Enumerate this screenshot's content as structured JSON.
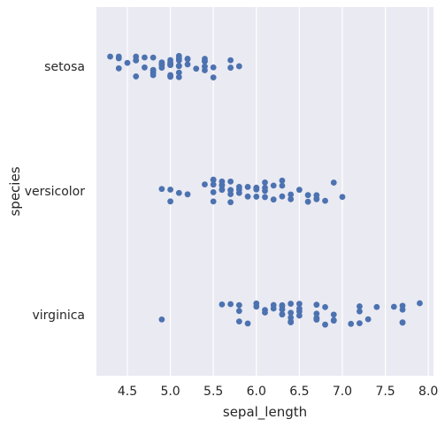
{
  "chart_data": {
    "type": "scatter",
    "style": "strip",
    "xlabel": "sepal_length",
    "ylabel": "species",
    "xlim": [
      4.14,
      8.06
    ],
    "xticks": [
      "4.5",
      "5.0",
      "5.5",
      "6.0",
      "6.5",
      "7.0",
      "7.5",
      "8.0"
    ],
    "categories": [
      "setosa",
      "versicolor",
      "virginica"
    ],
    "grid": true,
    "colors": {
      "background": "#eaeaf2",
      "grid": "#ffffff",
      "point": "#4c72b0",
      "text": "#262626"
    },
    "series": [
      {
        "category": "setosa",
        "x": [
          5.1,
          4.9,
          4.7,
          4.6,
          5.0,
          5.4,
          4.6,
          5.0,
          4.4,
          4.9,
          5.4,
          4.8,
          4.8,
          4.3,
          5.8,
          5.7,
          5.4,
          5.1,
          5.7,
          5.1,
          5.4,
          5.1,
          4.6,
          5.1,
          4.8,
          5.0,
          5.0,
          5.2,
          5.2,
          4.7,
          4.8,
          5.4,
          5.2,
          5.5,
          4.9,
          5.0,
          5.5,
          4.9,
          4.4,
          5.1,
          5.0,
          4.5,
          4.4,
          5.0,
          5.1,
          4.8,
          5.1,
          4.6,
          5.3,
          5.0
        ]
      },
      {
        "category": "versicolor",
        "x": [
          7.0,
          6.4,
          6.9,
          5.5,
          6.5,
          5.7,
          6.3,
          4.9,
          6.6,
          5.2,
          5.0,
          5.9,
          6.0,
          6.1,
          5.6,
          6.7,
          5.6,
          5.8,
          6.2,
          5.6,
          5.9,
          6.1,
          6.3,
          6.1,
          6.4,
          6.6,
          6.8,
          6.7,
          6.0,
          5.7,
          5.5,
          5.5,
          5.8,
          6.0,
          5.4,
          6.0,
          6.7,
          6.3,
          5.6,
          5.5,
          5.5,
          6.1,
          5.8,
          5.0,
          5.6,
          5.7,
          5.7,
          6.2,
          5.1,
          5.7
        ]
      },
      {
        "category": "virginica",
        "x": [
          6.3,
          5.8,
          7.1,
          6.3,
          6.5,
          7.6,
          4.9,
          7.3,
          6.7,
          7.2,
          6.5,
          6.4,
          6.8,
          5.7,
          5.8,
          6.4,
          6.5,
          7.7,
          7.7,
          6.0,
          6.9,
          5.6,
          7.7,
          6.3,
          6.7,
          7.2,
          6.2,
          6.1,
          6.4,
          7.2,
          7.4,
          7.9,
          6.4,
          6.3,
          6.1,
          7.7,
          6.3,
          6.4,
          6.0,
          6.9,
          6.7,
          6.9,
          5.8,
          6.8,
          6.7,
          6.7,
          6.3,
          6.5,
          6.2,
          5.9
        ]
      }
    ]
  }
}
